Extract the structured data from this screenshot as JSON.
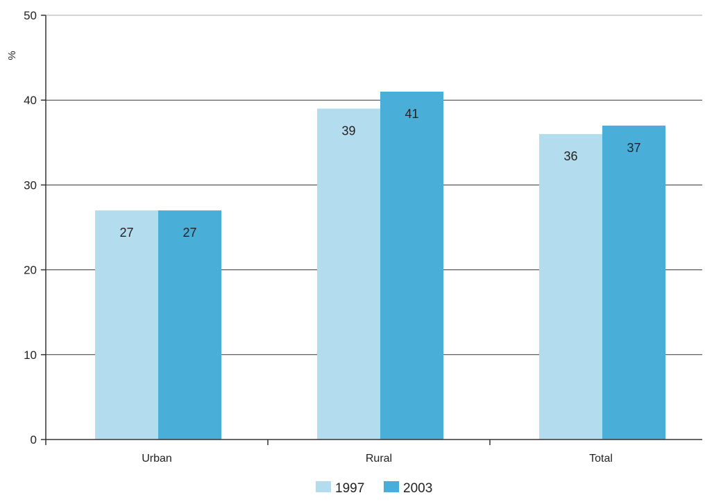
{
  "chart_data": {
    "type": "bar",
    "categories": [
      "Urban",
      "Rural",
      "Total"
    ],
    "series": [
      {
        "name": "1997",
        "values": [
          27,
          39,
          36
        ],
        "color": "#b3dcee"
      },
      {
        "name": "2003",
        "values": [
          27,
          41,
          37
        ],
        "color": "#4aafd8"
      }
    ],
    "ylabel": "%",
    "xlabel": "",
    "ylim": [
      0,
      50
    ],
    "yticks": [
      0,
      10,
      20,
      30,
      40,
      50
    ],
    "grid": true,
    "legend_position": "bottom-center",
    "data_labels": true,
    "colors": {
      "axis": "#333333",
      "grid": "#333333",
      "top_gridline": "#aaaaaa"
    }
  }
}
